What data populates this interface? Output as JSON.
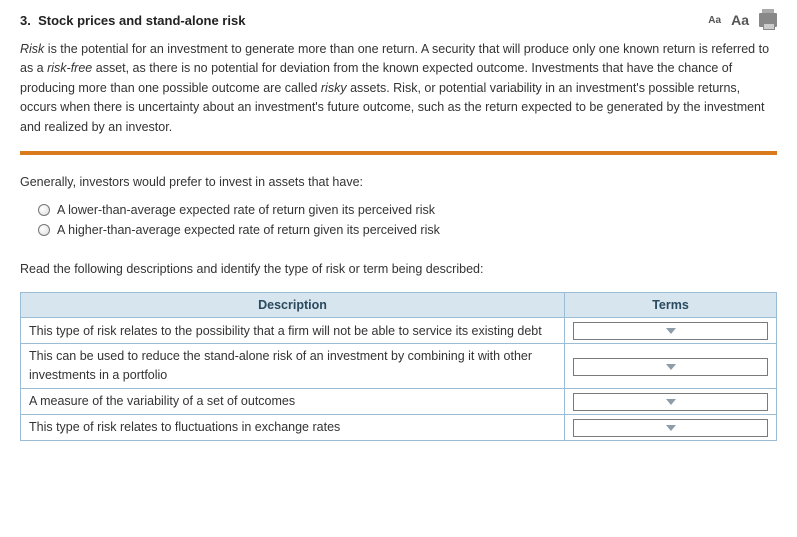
{
  "header": {
    "number": "3.",
    "title": "Stock prices and stand-alone risk"
  },
  "intro": {
    "p1_a": "Risk",
    "p1_b": " is the potential for an investment to generate more than one return. A security that will produce only one known return is referred to as a ",
    "p1_c": "risk-free",
    "p1_d": " asset, as there is no potential for deviation from the known expected outcome. Investments that have the chance of producing more than one possible outcome are called ",
    "p1_e": "risky",
    "p1_f": " assets. Risk, or potential variability in an investment's possible returns, occurs when there is uncertainty about an investment's future outcome, such as the return expected to be generated by the investment and realized by an investor."
  },
  "question1": {
    "prompt": "Generally, investors would prefer to invest in assets that have:",
    "options": [
      "A lower-than-average expected rate of return given its perceived risk",
      "A higher-than-average expected rate of return given its perceived risk"
    ]
  },
  "question2": {
    "prompt": "Read the following descriptions and identify the type of risk or term being described:",
    "col_description": "Description",
    "col_terms": "Terms",
    "rows": [
      "This type of risk relates to the possibility that a firm will not be able to service its existing debt",
      "This can be used to reduce the stand-alone risk of an investment by combining it with other investments in a portfolio",
      "A measure of the variability of a set of outcomes",
      "This type of risk relates to fluctuations in exchange rates"
    ]
  },
  "colors": {
    "accent_orange": "#d97a1c",
    "table_border": "#5a8fb8",
    "header_bg": "#d6e5ee"
  }
}
